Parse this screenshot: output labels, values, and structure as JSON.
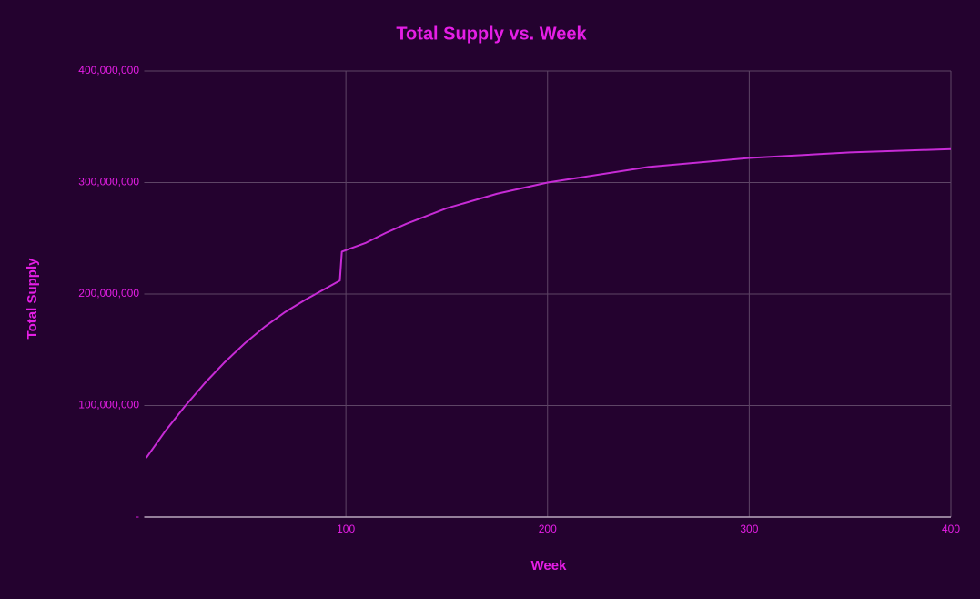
{
  "chart_data": {
    "type": "line",
    "title": "Total Supply vs. Week",
    "x_label": "Week",
    "y_label": "Total Supply",
    "x": [
      1,
      10,
      20,
      30,
      40,
      50,
      60,
      70,
      80,
      90,
      97,
      98,
      110,
      120,
      130,
      150,
      175,
      200,
      250,
      300,
      350,
      400
    ],
    "series": [
      {
        "name": "Total Supply",
        "color": "#c72bd6",
        "values": [
          53000000,
          76000000,
          99000000,
          120000000,
          139000000,
          156000000,
          171000000,
          184000000,
          195000000,
          205000000,
          212000000,
          238000000,
          246000000,
          255000000,
          263000000,
          277000000,
          290000000,
          300000000,
          314000000,
          322000000,
          327000000,
          330000000
        ]
      }
    ],
    "xlim": [
      0,
      400
    ],
    "xticks": [
      100,
      200,
      300,
      400
    ],
    "ylim": [
      0,
      400000000
    ],
    "yticks": [
      {
        "value": 0,
        "label": "-"
      },
      {
        "value": 100000000,
        "label": "100,000,000"
      },
      {
        "value": 200000000,
        "label": "200,000,000"
      },
      {
        "value": 300000000,
        "label": "300,000,000"
      },
      {
        "value": 400000000,
        "label": "400,000,000"
      }
    ],
    "grid": true
  }
}
